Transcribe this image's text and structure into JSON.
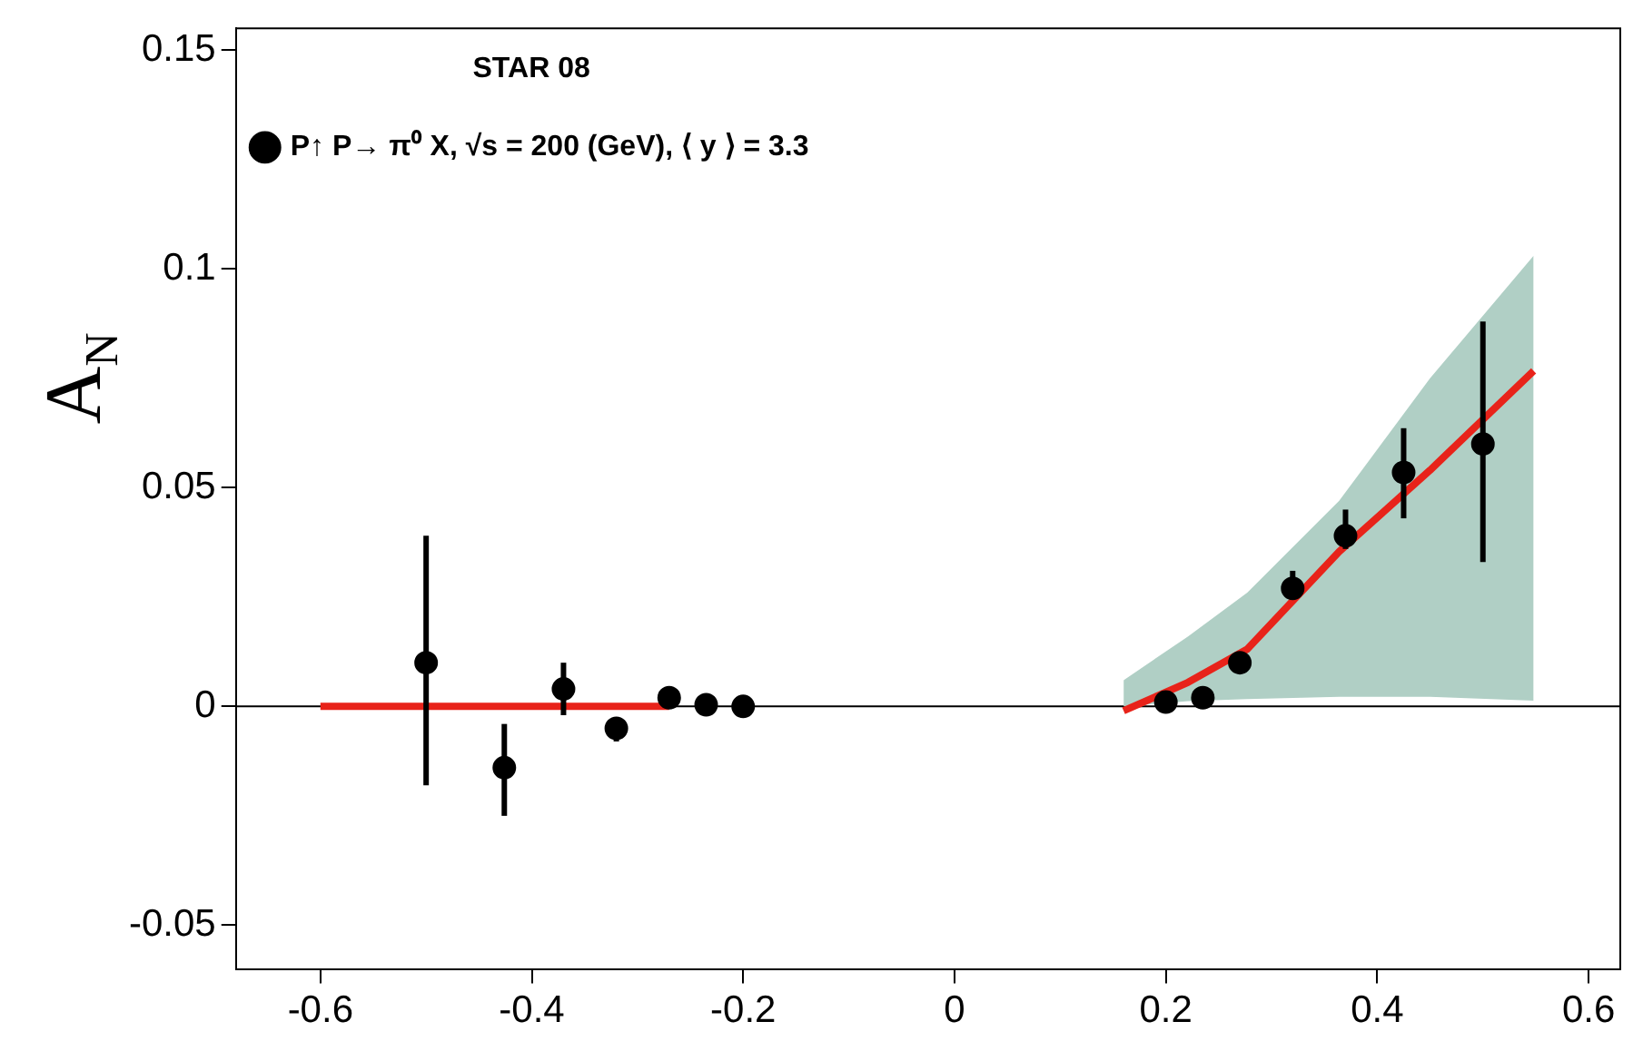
{
  "chart_data": {
    "type": "scatter",
    "ylabel": "A$_{N}$",
    "legend_title": "STAR 08",
    "xlim": [
      -0.68,
      0.63
    ],
    "xticks": [
      -0.6,
      -0.4,
      -0.2,
      0,
      0.2,
      0.4,
      0.6
    ],
    "ylim": [
      -0.06,
      0.155
    ],
    "yticks": [
      -0.05,
      0,
      0.05,
      0.1,
      0.15
    ],
    "grid": false,
    "legend": "top left",
    "ref_lines": [
      {
        "axis": "y",
        "value": 0,
        "color": "#000000"
      }
    ],
    "series": [
      {
        "name": "P↑ P→ π⁰ X, √s = 200 (GeV), ⟨ y ⟩ = 3.3",
        "type": "scatter",
        "marker": "circle",
        "color": "#000000",
        "x": [
          -0.5,
          -0.426,
          -0.37,
          -0.32,
          -0.27,
          -0.235,
          -0.2,
          0.2,
          0.235,
          0.27,
          0.32,
          0.37,
          0.425,
          0.5
        ],
        "values": [
          0.01,
          -0.014,
          0.004,
          -0.005,
          0.002,
          0.0004,
          0.0,
          0.001,
          0.002,
          0.01,
          0.027,
          0.039,
          0.0535,
          0.06
        ],
        "errors": [
          [
            -0.018,
            0.039
          ],
          [
            -0.025,
            -0.004
          ],
          [
            -0.002,
            0.01
          ],
          [
            -0.008,
            -0.003
          ],
          null,
          null,
          null,
          null,
          null,
          null,
          [
            0.025,
            0.031
          ],
          [
            0.036,
            0.045
          ],
          [
            0.043,
            0.0636
          ],
          [
            0.033,
            0.088
          ]
        ]
      },
      {
        "type": "line",
        "marker": "none",
        "color": "#e8231a",
        "x": [
          -0.6,
          -0.27
        ],
        "values": [
          0,
          0
        ]
      },
      {
        "type": "line",
        "marker": "none",
        "color": "#e8231a",
        "x": [
          0.16,
          0.221,
          0.277,
          0.364,
          0.45,
          0.548
        ],
        "values": [
          -0.001,
          0.0055,
          0.0131,
          0.0354,
          0.054,
          0.0767
        ],
        "lower": [
          0.0,
          0.0012,
          0.0017,
          0.0022,
          0.0022,
          0.0013
        ],
        "upper": [
          0.006,
          0.016,
          0.026,
          0.047,
          0.075,
          0.103
        ]
      }
    ]
  }
}
